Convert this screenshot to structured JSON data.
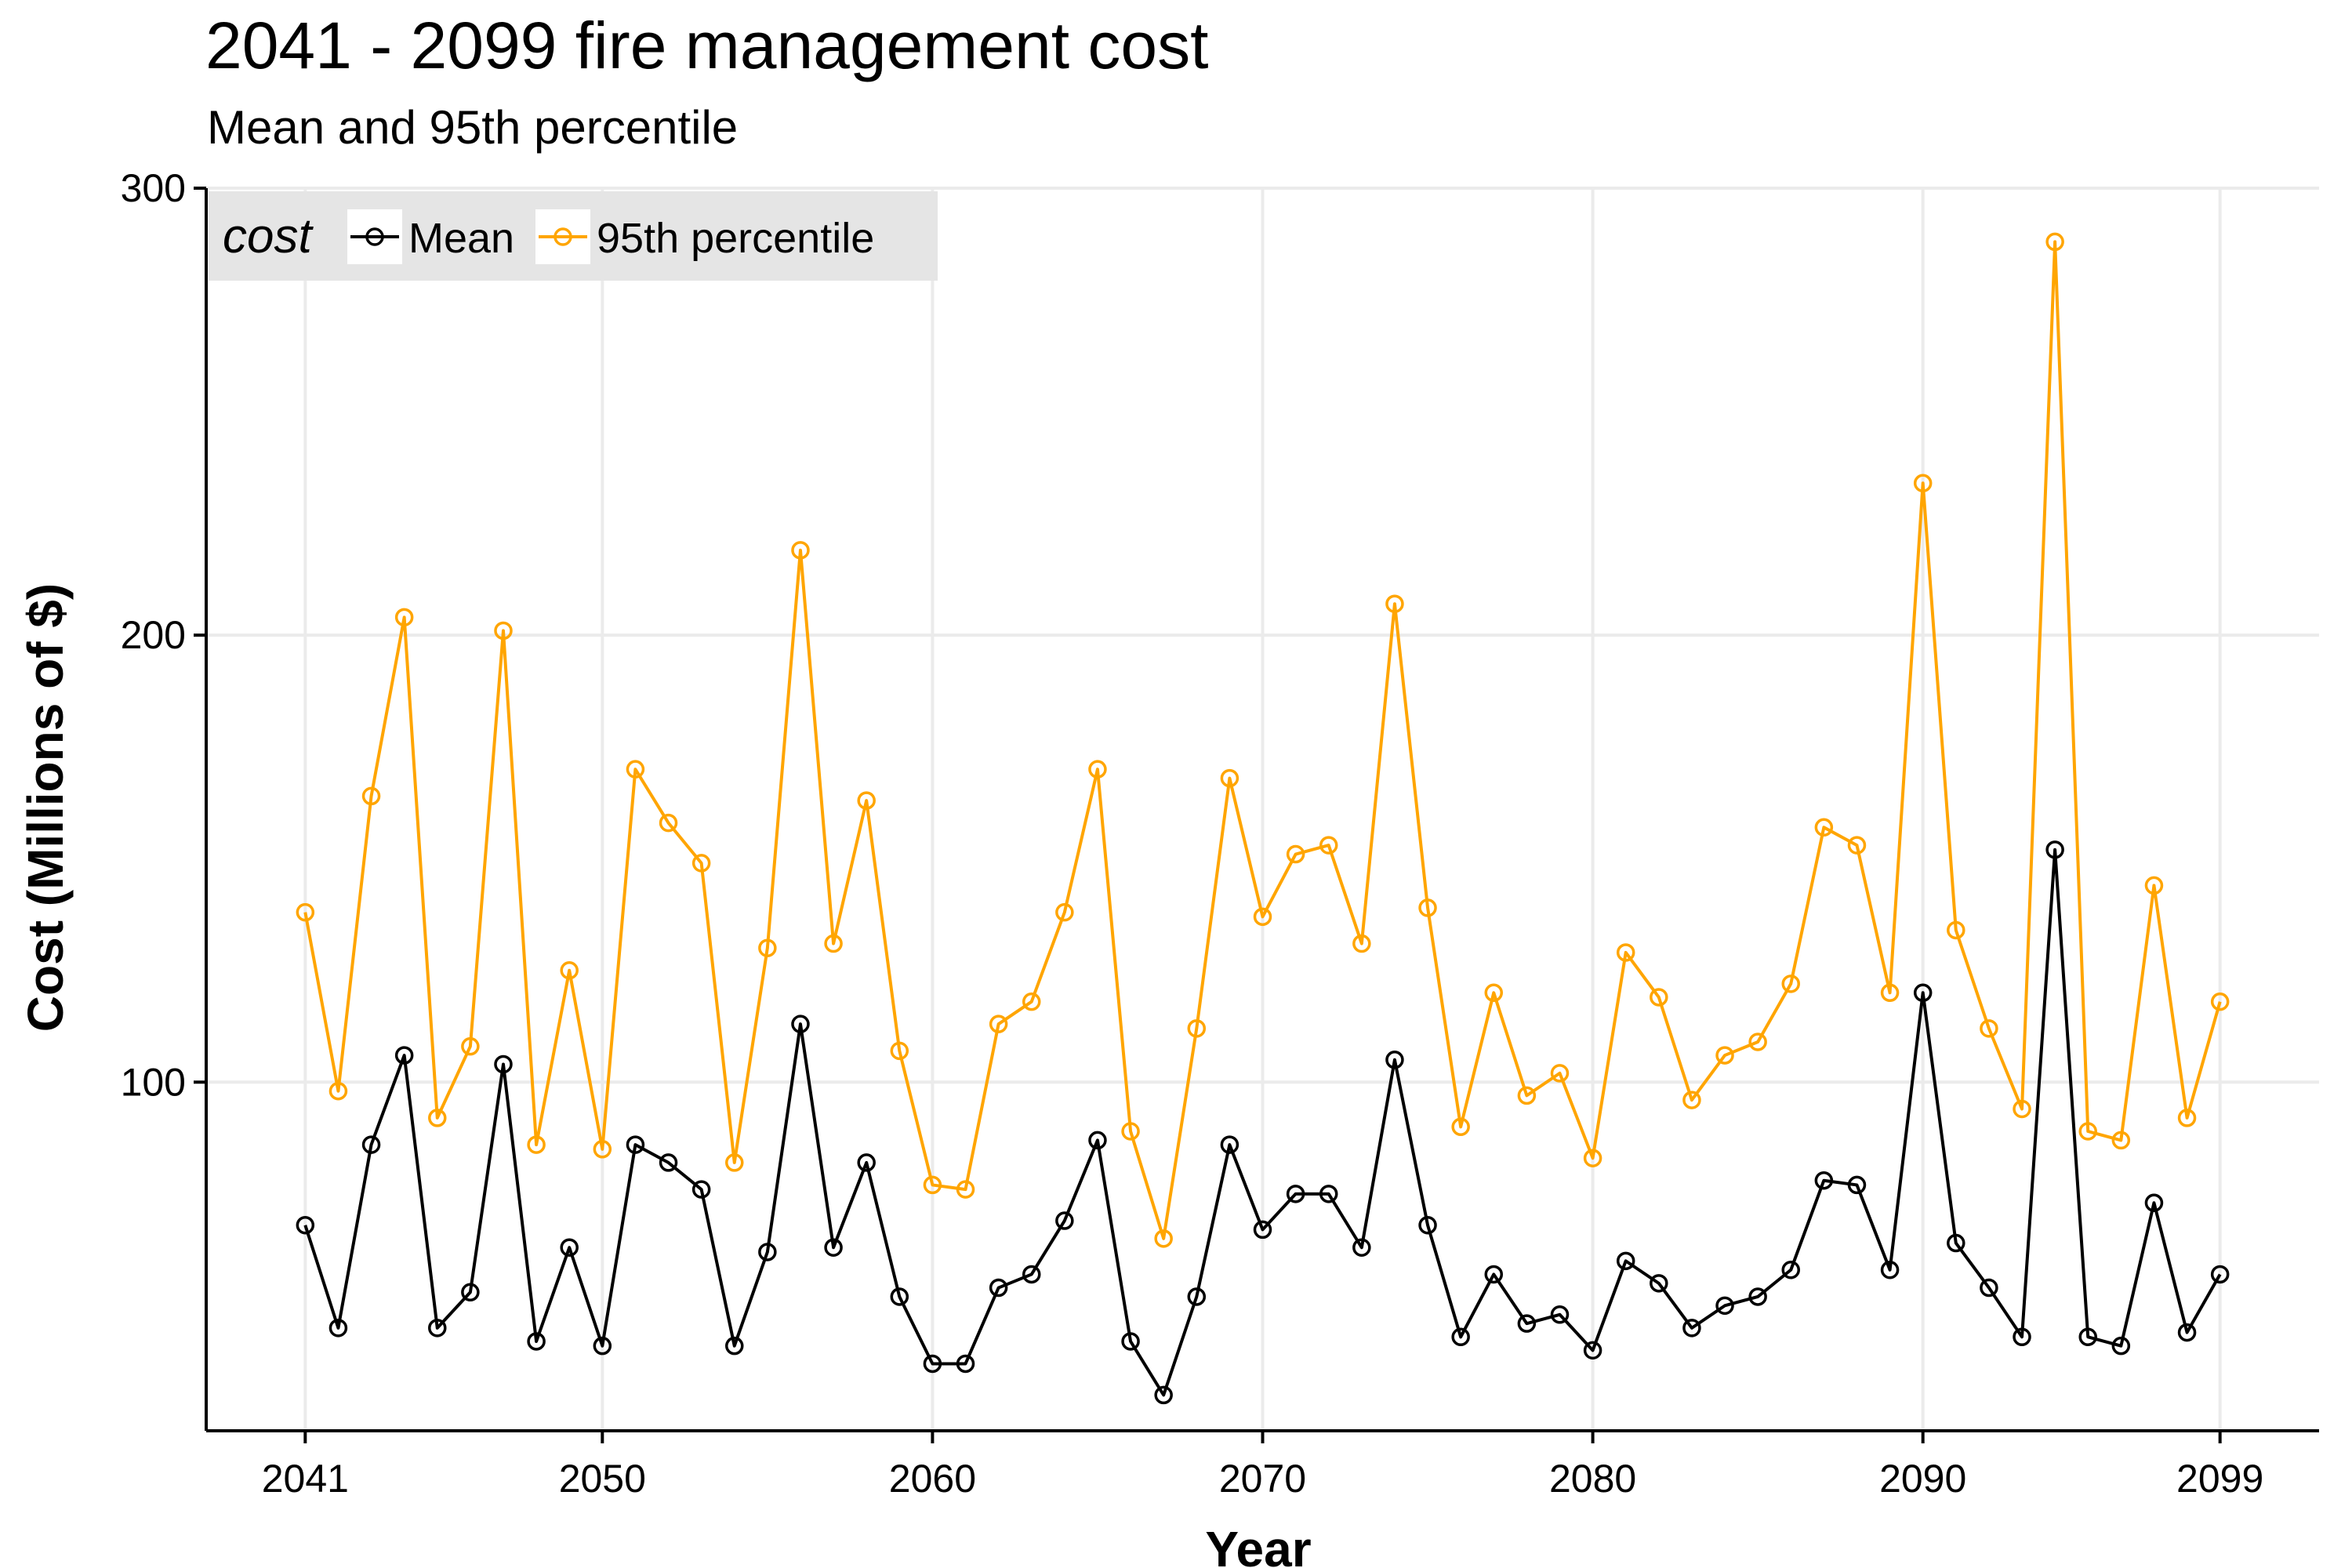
{
  "chart_data": {
    "type": "line",
    "title": "2041 - 2099 fire management cost",
    "subtitle": "Mean and 95th percentile",
    "xlabel": "Year",
    "ylabel": "Cost (Millions of $)",
    "xlim": [
      2038,
      2102
    ],
    "ylim": [
      22,
      300
    ],
    "x_ticks": [
      2041,
      2050,
      2060,
      2070,
      2080,
      2090,
      2099
    ],
    "y_ticks": [
      100,
      200,
      300
    ],
    "grid": true,
    "legend": {
      "title": "cost",
      "position": "top-left",
      "entries": [
        "Mean",
        "95th percentile"
      ]
    },
    "x": [
      2041,
      2042,
      2043,
      2044,
      2045,
      2046,
      2047,
      2048,
      2049,
      2050,
      2051,
      2052,
      2053,
      2054,
      2055,
      2056,
      2057,
      2058,
      2059,
      2060,
      2061,
      2062,
      2063,
      2064,
      2065,
      2066,
      2067,
      2068,
      2069,
      2070,
      2071,
      2072,
      2073,
      2074,
      2075,
      2076,
      2077,
      2078,
      2079,
      2080,
      2081,
      2082,
      2083,
      2084,
      2085,
      2086,
      2087,
      2088,
      2089,
      2090,
      2091,
      2092,
      2093,
      2094,
      2095,
      2096,
      2097,
      2098,
      2099
    ],
    "series": [
      {
        "name": "Mean",
        "color": "#000000",
        "values": [
          68,
          45,
          86,
          106,
          45,
          53,
          104,
          42,
          63,
          41,
          86,
          82,
          76,
          41,
          62,
          113,
          63,
          82,
          52,
          37,
          37,
          54,
          57,
          69,
          87,
          42,
          30,
          52,
          86,
          67,
          75,
          75,
          63,
          105,
          68,
          43,
          57,
          46,
          48,
          40,
          60,
          55,
          45,
          50,
          52,
          58,
          78,
          77,
          58,
          120,
          64,
          54,
          43,
          152,
          43,
          41,
          73,
          44,
          57
        ]
      },
      {
        "name": "95th percentile",
        "color": "#FFA500",
        "values": [
          138,
          98,
          164,
          204,
          92,
          108,
          201,
          86,
          125,
          85,
          170,
          158,
          149,
          82,
          130,
          219,
          131,
          163,
          107,
          77,
          76,
          113,
          118,
          138,
          170,
          89,
          65,
          112,
          168,
          137,
          151,
          153,
          131,
          207,
          139,
          90,
          120,
          97,
          102,
          83,
          129,
          119,
          96,
          106,
          109,
          122,
          157,
          153,
          120,
          234,
          134,
          112,
          94,
          288,
          89,
          87,
          144,
          92,
          118
        ]
      }
    ]
  }
}
